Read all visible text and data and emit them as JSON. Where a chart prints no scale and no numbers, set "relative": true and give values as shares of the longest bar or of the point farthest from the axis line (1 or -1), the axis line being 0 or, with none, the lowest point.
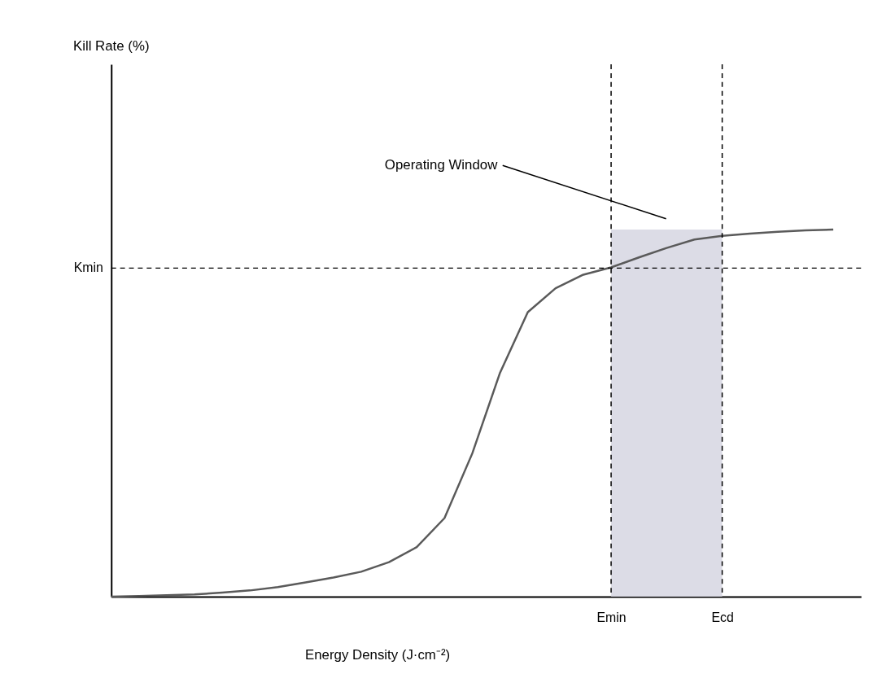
{
  "chart_data": {
    "type": "line",
    "relative": true,
    "xlabel": "Energy Density (J·cm⁻²)",
    "tick_labels": "x",
    "grid": false,
    "marker": "none",
    "line_style": "solid",
    "categories": [
      null,
      null,
      null,
      null,
      null,
      null,
      null,
      null,
      null,
      null,
      null,
      null,
      null,
      null,
      null,
      null,
      null,
      null,
      "Emin",
      null,
      null,
      null,
      "Ecd",
      null,
      null,
      null,
      null
    ],
    "series": [
      {
        "color": "#5a5a5a",
        "values": [
          0,
          0.002,
          0.004,
          0.006,
          0.011,
          0.017,
          0.026,
          0.039,
          0.052,
          0.068,
          0.094,
          0.135,
          0.214,
          0.39,
          0.61,
          0.775,
          0.84,
          0.877,
          0.897,
          0.924,
          0.95,
          0.973,
          0.983,
          0.989,
          0.994,
          0.998,
          1.0
        ]
      }
    ],
    "ref_lines": [
      {
        "axis": "y",
        "value": 0.895,
        "label": "Kmin",
        "line_style": "dashed",
        "color": "#000000"
      },
      {
        "axis": "x",
        "value": "Emin",
        "line_style": "dashed",
        "color": "#000000"
      },
      {
        "axis": "x",
        "value": "Ecd",
        "line_style": "dashed",
        "color": "#000000"
      }
    ],
    "bands": [
      {
        "axis": "x",
        "from": "Emin",
        "to": "Ecd",
        "color": "#dcdce6"
      }
    ],
    "annotations": [
      "Kill Rate (%)",
      "Operating Window"
    ]
  }
}
